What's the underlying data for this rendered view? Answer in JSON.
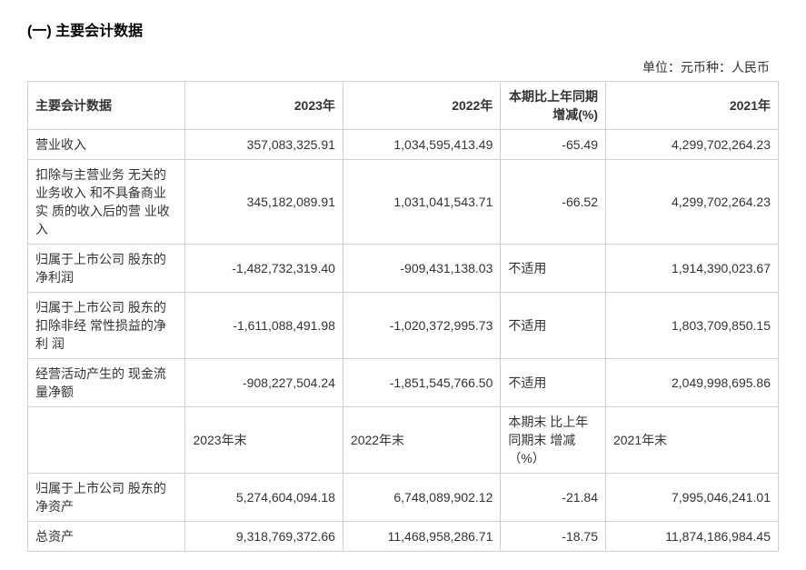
{
  "title": "(一) 主要会计数据",
  "unit_label": "单位：元币种：人民币",
  "table": {
    "headers": {
      "main_data": "主要会计数据",
      "year_2023": "2023年",
      "year_2022": "2022年",
      "change": "本期比上年同期增减(%)",
      "year_2021": "2021年"
    },
    "rows": [
      {
        "label": "营业收入",
        "y2023": "357,083,325.91",
        "y2022": "1,034,595,413.49",
        "change": "-65.49",
        "y2021": "4,299,702,264.23"
      },
      {
        "label": "扣除与主营业务 无关的业务收入 和不具备商业实 质的收入后的营 业收入",
        "y2023": "345,182,089.91",
        "y2022": "1,031,041,543.71",
        "change": "-66.52",
        "y2021": "4,299,702,264.23"
      },
      {
        "label": "归属于上市公司 股东的净利润",
        "y2023": "-1,482,732,319.40",
        "y2022": "-909,431,138.03",
        "change": "不适用",
        "change_is_text": true,
        "y2021": "1,914,390,023.67"
      },
      {
        "label": "归属于上市公司 股东的扣除非经 常性损益的净利 润",
        "y2023": "-1,611,088,491.98",
        "y2022": "-1,020,372,995.73",
        "change": "不适用",
        "change_is_text": true,
        "y2021": "1,803,709,850.15"
      },
      {
        "label": "经营活动产生的 现金流量净额",
        "y2023": "-908,227,504.24",
        "y2022": "-1,851,545,766.50",
        "change": "不适用",
        "change_is_text": true,
        "y2021": "2,049,998,695.86"
      }
    ],
    "subheader": {
      "col0": "",
      "y2023_end": "2023年末",
      "y2022_end": "2022年末",
      "change_end": "本期末 比上年 同期末 增减（%）",
      "y2021_end": "2021年末"
    },
    "rows2": [
      {
        "label": "归属于上市公司 股东的净资产",
        "y2023": "5,274,604,094.18",
        "y2022": "6,748,089,902.12",
        "change": "-21.84",
        "y2021": "7,995,046,241.01"
      },
      {
        "label": "总资产",
        "y2023": "9,318,769,372.66",
        "y2022": "11,468,958,286.71",
        "change": "-18.75",
        "y2021": "11,874,186,984.45"
      }
    ]
  },
  "styling": {
    "font_family": "Microsoft YaHei, SimSun",
    "title_fontsize": 16,
    "title_fontweight": "bold",
    "body_fontsize": 14,
    "border_color": "#d0d0d0",
    "text_color": "#333333",
    "background_color": "#ffffff",
    "column_widths_pct": [
      21,
      21,
      21,
      14,
      23
    ]
  }
}
